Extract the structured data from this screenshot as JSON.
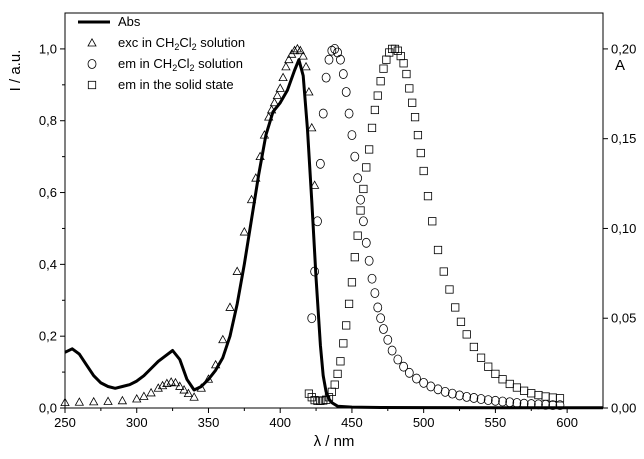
{
  "chart_data": {
    "type": "line",
    "xlabel": "λ / nm",
    "ylabel_left": "I / a.u.",
    "ylabel_right": "A",
    "xlim": [
      250,
      625
    ],
    "ylim_left": [
      0,
      1.1
    ],
    "ylim_right": [
      0,
      0.22
    ],
    "xticks": [
      250,
      300,
      350,
      400,
      450,
      500,
      550,
      600
    ],
    "xtick_labels": [
      "250",
      "300",
      "350",
      "400",
      "450",
      "500",
      "550",
      "600"
    ],
    "yticks_left": [
      0,
      0.2,
      0.4,
      0.6,
      0.8,
      1.0
    ],
    "ytick_labels_left": [
      "0,0",
      "0,2",
      "0,4",
      "0,6",
      "0,8",
      "1,0"
    ],
    "yticks_right": [
      0,
      0.05,
      0.1,
      0.15,
      0.2
    ],
    "ytick_labels_right": [
      "0,00",
      "0,05",
      "0,10",
      "0,15",
      "0,20"
    ],
    "legend_position": "top-left",
    "series": [
      {
        "name": "Abs",
        "axis": "right",
        "marker": "line",
        "x": [
          250,
          255,
          260,
          265,
          270,
          275,
          280,
          285,
          290,
          295,
          300,
          305,
          310,
          315,
          320,
          325,
          330,
          335,
          340,
          345,
          350,
          355,
          360,
          365,
          370,
          375,
          380,
          385,
          390,
          395,
          400,
          405,
          410,
          413,
          416,
          419,
          422,
          425,
          428,
          430,
          432,
          434,
          436,
          440,
          450,
          470,
          500,
          550,
          600,
          625
        ],
        "values": [
          0.031,
          0.033,
          0.03,
          0.024,
          0.018,
          0.014,
          0.012,
          0.011,
          0.012,
          0.013,
          0.015,
          0.018,
          0.022,
          0.026,
          0.029,
          0.032,
          0.027,
          0.016,
          0.01,
          0.012,
          0.016,
          0.021,
          0.028,
          0.04,
          0.058,
          0.08,
          0.105,
          0.13,
          0.152,
          0.165,
          0.17,
          0.177,
          0.188,
          0.194,
          0.185,
          0.155,
          0.115,
          0.072,
          0.035,
          0.018,
          0.009,
          0.005,
          0.003,
          0.001,
          0.0005,
          0.0003,
          0.0002,
          0.0001,
          0.0001,
          0.0001
        ]
      },
      {
        "name": "exc in CH2Cl2 solution",
        "legend_html_parts": [
          "exc in CH",
          "2",
          "Cl",
          "2",
          " solution"
        ],
        "axis": "left",
        "marker": "triangle",
        "x": [
          250,
          260,
          270,
          280,
          290,
          300,
          305,
          310,
          315,
          318,
          321,
          324,
          327,
          330,
          333,
          336,
          340,
          345,
          350,
          355,
          360,
          365,
          370,
          375,
          380,
          383,
          386,
          389,
          392,
          394,
          396,
          398,
          400,
          402,
          404,
          406,
          408,
          410,
          412,
          414,
          416,
          418,
          420,
          422,
          424
        ],
        "values": [
          0.015,
          0.016,
          0.017,
          0.018,
          0.02,
          0.025,
          0.032,
          0.042,
          0.055,
          0.062,
          0.068,
          0.072,
          0.07,
          0.06,
          0.05,
          0.04,
          0.03,
          0.055,
          0.08,
          0.12,
          0.19,
          0.28,
          0.38,
          0.49,
          0.58,
          0.64,
          0.7,
          0.76,
          0.81,
          0.83,
          0.85,
          0.87,
          0.89,
          0.92,
          0.95,
          0.97,
          0.985,
          0.995,
          1.0,
          0.995,
          0.98,
          0.95,
          0.88,
          0.78,
          0.62
        ]
      },
      {
        "name": "em in CH2Cl2 solution",
        "legend_html_parts": [
          "em in CH",
          "2",
          "Cl",
          "2",
          " solution"
        ],
        "axis": "left",
        "marker": "circle",
        "x": [
          422,
          424,
          426,
          428,
          430,
          432,
          434,
          436,
          438,
          440,
          442,
          444,
          446,
          448,
          450,
          452,
          454,
          456,
          458,
          460,
          462,
          464,
          466,
          468,
          470,
          472,
          475,
          478,
          482,
          486,
          490,
          495,
          500,
          505,
          510,
          515,
          520,
          525,
          530,
          535,
          540,
          545,
          550,
          555,
          560,
          565,
          570,
          575,
          580,
          585,
          590,
          595
        ],
        "values": [
          0.25,
          0.38,
          0.52,
          0.68,
          0.82,
          0.92,
          0.97,
          0.995,
          1.0,
          0.99,
          0.97,
          0.93,
          0.88,
          0.82,
          0.76,
          0.7,
          0.64,
          0.58,
          0.52,
          0.46,
          0.41,
          0.36,
          0.32,
          0.28,
          0.25,
          0.22,
          0.19,
          0.16,
          0.135,
          0.115,
          0.098,
          0.082,
          0.07,
          0.06,
          0.052,
          0.045,
          0.04,
          0.035,
          0.031,
          0.028,
          0.025,
          0.022,
          0.02,
          0.018,
          0.016,
          0.014,
          0.012,
          0.011,
          0.01,
          0.009,
          0.008,
          0.008
        ]
      },
      {
        "name": "em in the solid state",
        "axis": "left",
        "marker": "square",
        "x": [
          420,
          422,
          424,
          426,
          428,
          430,
          432,
          434,
          436,
          438,
          440,
          442,
          444,
          446,
          448,
          450,
          452,
          454,
          456,
          458,
          460,
          462,
          464,
          466,
          468,
          470,
          472,
          474,
          476,
          478,
          480,
          482,
          484,
          486,
          488,
          490,
          492,
          494,
          496,
          498,
          500,
          503,
          506,
          510,
          514,
          518,
          522,
          526,
          530,
          535,
          540,
          545,
          550,
          555,
          560,
          565,
          570,
          575,
          580,
          585,
          590,
          595
        ],
        "values": [
          0.04,
          0.03,
          0.022,
          0.02,
          0.02,
          0.021,
          0.023,
          0.03,
          0.045,
          0.065,
          0.095,
          0.13,
          0.18,
          0.23,
          0.29,
          0.35,
          0.42,
          0.48,
          0.55,
          0.61,
          0.67,
          0.72,
          0.78,
          0.83,
          0.87,
          0.91,
          0.945,
          0.97,
          0.99,
          1.0,
          1.0,
          0.995,
          0.98,
          0.96,
          0.93,
          0.89,
          0.85,
          0.81,
          0.76,
          0.71,
          0.66,
          0.59,
          0.52,
          0.44,
          0.38,
          0.33,
          0.28,
          0.24,
          0.205,
          0.17,
          0.14,
          0.115,
          0.095,
          0.08,
          0.067,
          0.057,
          0.048,
          0.041,
          0.036,
          0.032,
          0.029,
          0.027
        ]
      }
    ]
  }
}
